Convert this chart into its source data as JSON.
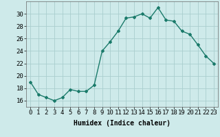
{
  "x": [
    0,
    1,
    2,
    3,
    4,
    5,
    6,
    7,
    8,
    9,
    10,
    11,
    12,
    13,
    14,
    15,
    16,
    17,
    18,
    19,
    20,
    21,
    22,
    23
  ],
  "y": [
    19,
    17,
    16.5,
    16,
    16.5,
    17.8,
    17.5,
    17.5,
    18.5,
    24,
    25.5,
    27.2,
    29.3,
    29.5,
    30,
    29.3,
    31,
    29,
    28.8,
    27.2,
    26.7,
    25,
    23.2,
    22
  ],
  "xlabel": "Humidex (Indice chaleur)",
  "ylim": [
    15,
    32
  ],
  "xlim": [
    -0.5,
    23.5
  ],
  "yticks": [
    16,
    18,
    20,
    22,
    24,
    26,
    28,
    30
  ],
  "xtick_labels": [
    "0",
    "1",
    "2",
    "3",
    "4",
    "5",
    "6",
    "7",
    "8",
    "9",
    "10",
    "11",
    "12",
    "13",
    "14",
    "15",
    "16",
    "17",
    "18",
    "19",
    "20",
    "21",
    "22",
    "23"
  ],
  "line_color": "#1a7a6a",
  "marker": "D",
  "marker_size": 2,
  "line_width": 1.0,
  "bg_color": "#ceeaea",
  "grid_color": "#aacece",
  "label_fontsize": 7,
  "tick_fontsize": 6.5
}
